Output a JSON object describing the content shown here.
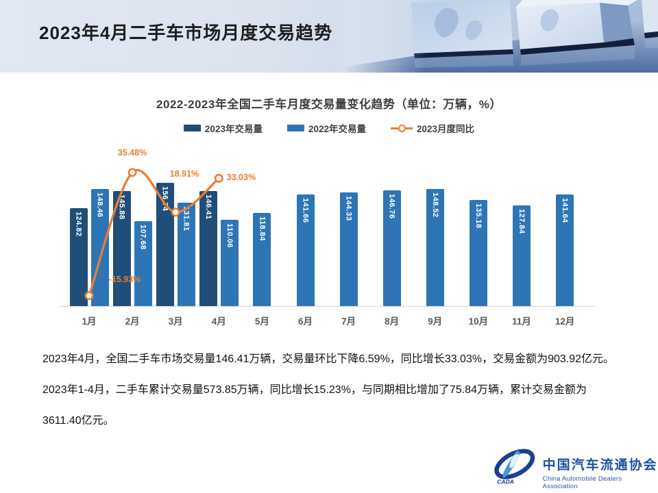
{
  "header": {
    "title": "2023年4月二手车市场月度交易趋势"
  },
  "chart_data": {
    "type": "bar",
    "title": "2022-2023年全国二手车月度交易量变化趋势（单位：万辆，%）",
    "categories": [
      "1月",
      "2月",
      "3月",
      "4月",
      "5月",
      "6月",
      "7月",
      "8月",
      "9月",
      "10月",
      "11月",
      "12月"
    ],
    "series": [
      {
        "name": "2023年交易量",
        "type": "bar",
        "color": "#1F4E79",
        "values": [
          124.82,
          145.88,
          156.74,
          146.41,
          null,
          null,
          null,
          null,
          null,
          null,
          null,
          null
        ]
      },
      {
        "name": "2022年交易量",
        "type": "bar",
        "color": "#2E75B6",
        "values": [
          148.46,
          107.68,
          131.81,
          110.06,
          118.84,
          141.66,
          144.33,
          146.76,
          148.52,
          135.18,
          127.84,
          141.64
        ]
      },
      {
        "name": "2023月度同比",
        "type": "line",
        "color": "#ED7D31",
        "marker_fill": "#FDF8F3",
        "values": [
          -15.93,
          35.48,
          18.91,
          33.03,
          null,
          null,
          null,
          null,
          null,
          null,
          null,
          null
        ]
      }
    ],
    "unit": "万辆，%",
    "legend_position": "top",
    "value_labels": "inside-top-vertical",
    "yoy_label_suffix": "%",
    "y_axis_visible": false,
    "grid": false,
    "ylim": [
      0,
      170
    ],
    "y2lim_pct": [
      -25,
      45
    ]
  },
  "body": {
    "lines": [
      "2023年4月，全国二手车市场交易量146.41万辆，交易量环比下降6.59%，同比增长33.03%，交易金额为903.92亿元。",
      "2023年1-4月，二手车累计交易量573.85万辆，同比增长15.23%，与同期相比增加了75.84万辆，累计交易金额为",
      "3611.40亿元。"
    ]
  },
  "logo": {
    "mark": "CADA",
    "org_cn": "中国汽车流通协会",
    "org_en": "China Automobile Dealers Association"
  }
}
